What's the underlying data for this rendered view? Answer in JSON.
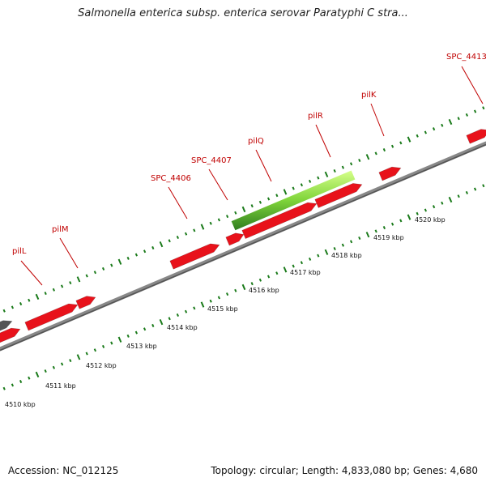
{
  "title": "Salmonella enterica subsp. enterica serovar Paratyphi C stra...",
  "footer": {
    "accession": "Accession: NC_012125",
    "stats": "Topology: circular; Length: 4,833,080 bp; Genes: 4,680"
  },
  "colors": {
    "gene": "#e8121b",
    "highlight": "#7fd43a",
    "other": "#555555",
    "backbone": "#888888",
    "tick": "#1a7a1a",
    "label": "#c00000"
  },
  "gene_labels": [
    "SPC_4413",
    "pilK",
    "pilR",
    "pilQ",
    "SPC_4407",
    "SPC_4406",
    "pilM",
    "pilL"
  ],
  "kbp_labels": [
    "4510 kbp",
    "4511 kbp",
    "4512 kbp",
    "4513 kbp",
    "4514 kbp",
    "4515 kbp",
    "4516 kbp",
    "4517 kbp",
    "4518 kbp",
    "4519 kbp",
    "4520 kbp"
  ]
}
